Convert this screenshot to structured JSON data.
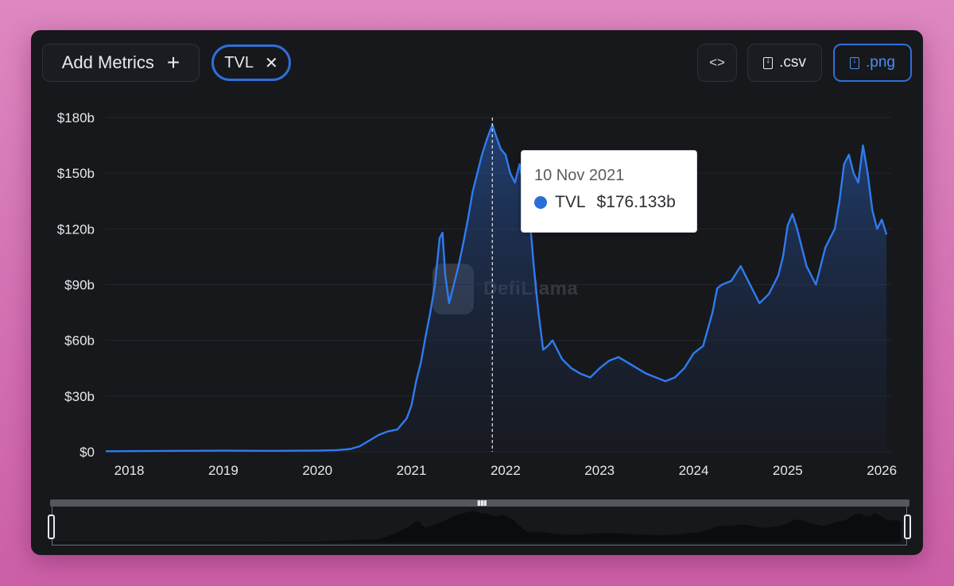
{
  "toolbar": {
    "add_metrics_label": "Add Metrics",
    "add_metrics_plus": "+",
    "metric_pill_label": "TVL",
    "metric_pill_close": "✕",
    "embed_label": "<>",
    "csv_label": ".csv",
    "png_label": ".png"
  },
  "tooltip": {
    "date": "10 Nov 2021",
    "series": "TVL",
    "value": "$176.133b"
  },
  "watermark": {
    "text": "DefiLlama"
  },
  "colors": {
    "line": "#2f7bf0",
    "area_top": "#2a5fba",
    "panel_bg": "#17181c",
    "accent": "#2f6fd8"
  },
  "chart_data": {
    "type": "area",
    "y_unit": "USD billions",
    "ylim": [
      0,
      180
    ],
    "y_ticks": [
      "$0",
      "$30b",
      "$60b",
      "$90b",
      "$120b",
      "$150b",
      "$180b"
    ],
    "x_ticks": [
      "2018",
      "2019",
      "2020",
      "2021",
      "2022",
      "2023",
      "2024",
      "2025",
      "2026"
    ],
    "xlim": [
      2017.75,
      2026.1
    ],
    "grid": true,
    "hover": {
      "x": 2021.86,
      "date": "10 Nov 2021",
      "value": 176.133
    },
    "series": [
      {
        "x": [
          2017.75,
          2018.5,
          2019.0,
          2019.5,
          2020.0,
          2020.2,
          2020.35,
          2020.45,
          2020.55,
          2020.65,
          2020.75,
          2020.85,
          2020.95,
          2021.0,
          2021.05,
          2021.1,
          2021.15,
          2021.2,
          2021.25,
          2021.3,
          2021.33,
          2021.36,
          2021.4,
          2021.45,
          2021.5,
          2021.55,
          2021.6,
          2021.65,
          2021.7,
          2021.75,
          2021.8,
          2021.86,
          2021.9,
          2021.95,
          2022.0,
          2022.05,
          2022.1,
          2022.15,
          2022.2,
          2022.25,
          2022.3,
          2022.35,
          2022.4,
          2022.45,
          2022.5,
          2022.55,
          2022.6,
          2022.7,
          2022.8,
          2022.9,
          2023.0,
          2023.1,
          2023.2,
          2023.3,
          2023.4,
          2023.5,
          2023.6,
          2023.7,
          2023.8,
          2023.9,
          2024.0,
          2024.1,
          2024.2,
          2024.25,
          2024.3,
          2024.4,
          2024.5,
          2024.6,
          2024.7,
          2024.8,
          2024.9,
          2024.95,
          2025.0,
          2025.05,
          2025.1,
          2025.2,
          2025.3,
          2025.4,
          2025.45,
          2025.5,
          2025.55,
          2025.6,
          2025.65,
          2025.7,
          2025.75,
          2025.8,
          2025.85,
          2025.9,
          2025.95,
          2026.0,
          2026.05
        ],
        "values": [
          0.3,
          0.5,
          0.6,
          0.5,
          0.7,
          0.9,
          1.5,
          3,
          6,
          9,
          11,
          12,
          18,
          25,
          38,
          48,
          62,
          75,
          90,
          115,
          118,
          95,
          80,
          90,
          100,
          112,
          125,
          140,
          150,
          160,
          168,
          176.133,
          170,
          163,
          160,
          150,
          145,
          155,
          140,
          130,
          100,
          75,
          55,
          57,
          60,
          55,
          50,
          45,
          42,
          40,
          45,
          49,
          51,
          48,
          45,
          42,
          40,
          38,
          40,
          45,
          53,
          57,
          75,
          88,
          90,
          92,
          100,
          90,
          80,
          85,
          95,
          105,
          122,
          128,
          120,
          100,
          90,
          110,
          115,
          120,
          135,
          155,
          160,
          150,
          145,
          165,
          150,
          130,
          120,
          125,
          117
        ]
      }
    ]
  }
}
